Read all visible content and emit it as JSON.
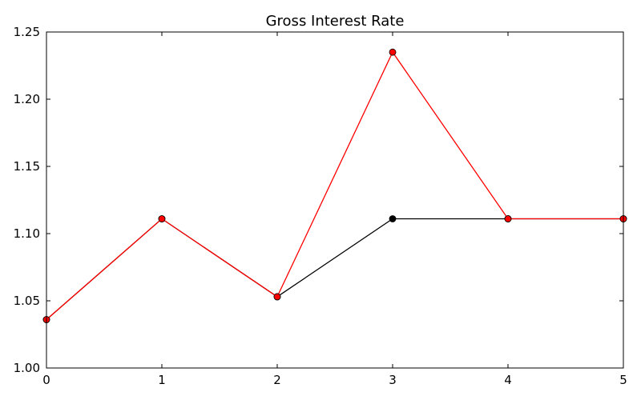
{
  "chart_data": {
    "type": "line",
    "title": "Gross Interest Rate",
    "xlabel": "",
    "ylabel": "",
    "x": [
      0,
      1,
      2,
      3,
      4,
      5
    ],
    "xlim": [
      0,
      5
    ],
    "ylim": [
      1.0,
      1.25
    ],
    "xticks": [
      "0",
      "1",
      "2",
      "3",
      "4",
      "5"
    ],
    "yticks": [
      "1.00",
      "1.05",
      "1.10",
      "1.15",
      "1.20",
      "1.25"
    ],
    "grid": false,
    "series": [
      {
        "color": "#000000",
        "marker": "circle",
        "values": [
          1.036,
          1.111,
          1.053,
          1.111,
          1.111,
          1.111
        ]
      },
      {
        "color": "#ff0000",
        "marker": "circle",
        "values": [
          1.036,
          1.111,
          1.053,
          1.235,
          1.111,
          1.111
        ]
      }
    ]
  }
}
